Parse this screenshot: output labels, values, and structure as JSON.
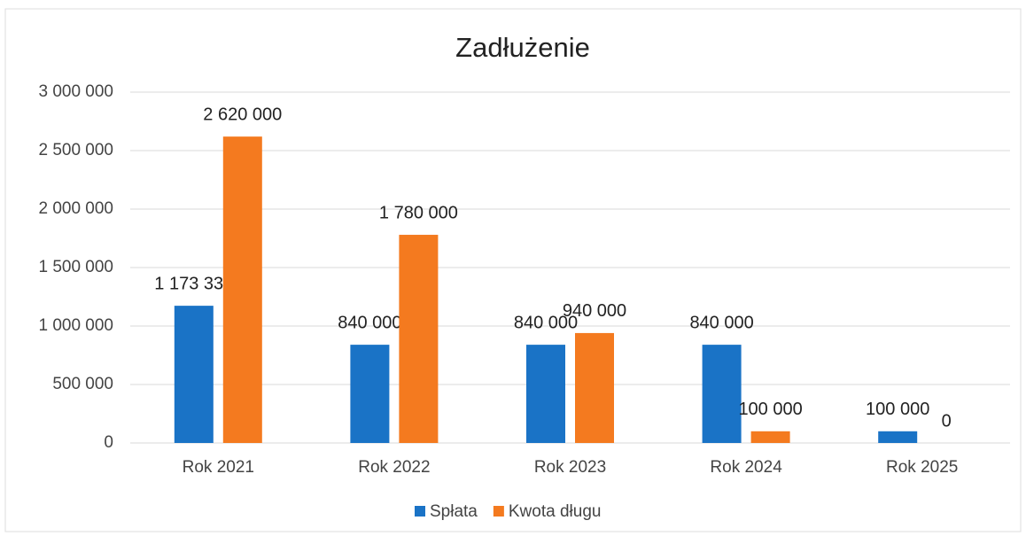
{
  "chart_data": {
    "type": "bar",
    "title": "Zadłużenie",
    "categories": [
      "Rok 2021",
      "Rok 2022",
      "Rok 2023",
      "Rok 2024",
      "Rok 2025"
    ],
    "series": [
      {
        "name": "Spłata",
        "color": "#1a73c6",
        "values": [
          1173332,
          840000,
          840000,
          840000,
          100000
        ],
        "value_labels": [
          "1 173 332",
          "840 000",
          "840 000",
          "840 000",
          "100 000"
        ]
      },
      {
        "name": "Kwota długu",
        "color": "#f47a1f",
        "values": [
          2620000,
          1780000,
          940000,
          100000,
          0
        ],
        "value_labels": [
          "2 620 000",
          "1 780 000",
          "940 000",
          "100 000",
          "0"
        ]
      }
    ],
    "ylim": [
      0,
      3000000
    ],
    "yticks": [
      {
        "value": 0,
        "label": "0"
      },
      {
        "value": 500000,
        "label": "500 000"
      },
      {
        "value": 1000000,
        "label": "1 000 000"
      },
      {
        "value": 1500000,
        "label": "1 500 000"
      },
      {
        "value": 2000000,
        "label": "2 000 000"
      },
      {
        "value": 2500000,
        "label": "2 500 000"
      },
      {
        "value": 3000000,
        "label": "3 000 000"
      }
    ],
    "grid": true,
    "legend": "bottom"
  }
}
